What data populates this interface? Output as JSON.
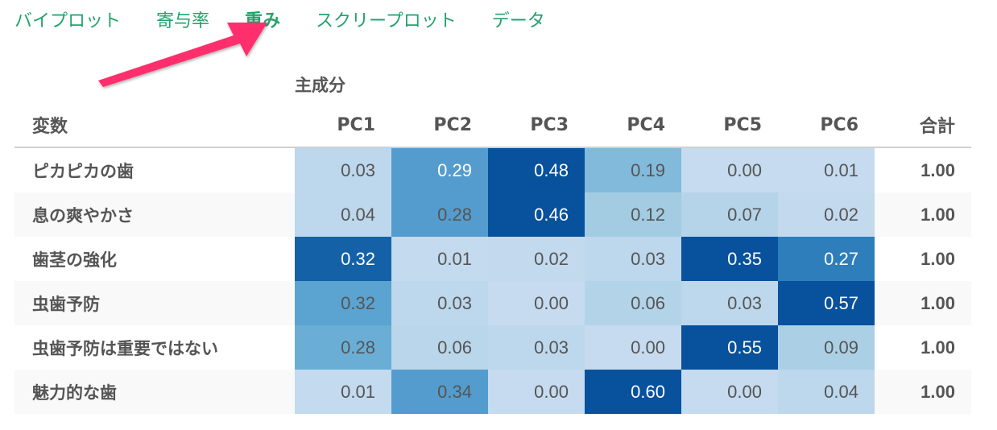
{
  "tabs": [
    {
      "label": "バイプロット",
      "active": false
    },
    {
      "label": "寄与率",
      "active": false
    },
    {
      "label": "重み",
      "active": true
    },
    {
      "label": "スクリープロット",
      "active": false
    },
    {
      "label": "データ",
      "active": false
    }
  ],
  "annotation": {
    "arrow_color": "#ff2e6c",
    "points_to": "重み"
  },
  "table": {
    "group_label": "主成分",
    "headers": {
      "variable": "変数",
      "pcs": [
        "PC1",
        "PC2",
        "PC3",
        "PC4",
        "PC5",
        "PC6"
      ],
      "total": "合計"
    },
    "rows": [
      {
        "variable": "ピカピカの歯",
        "values": [
          "0.03",
          "0.29",
          "0.48",
          "0.19",
          "0.00",
          "0.01"
        ],
        "total": "1.00"
      },
      {
        "variable": "息の爽やかさ",
        "values": [
          "0.04",
          "0.28",
          "0.46",
          "0.12",
          "0.07",
          "0.02"
        ],
        "total": "1.00"
      },
      {
        "variable": "歯茎の強化",
        "values": [
          "0.32",
          "0.01",
          "0.02",
          "0.03",
          "0.35",
          "0.27"
        ],
        "total": "1.00"
      },
      {
        "variable": "虫歯予防",
        "values": [
          "0.32",
          "0.03",
          "0.00",
          "0.06",
          "0.03",
          "0.57"
        ],
        "total": "1.00"
      },
      {
        "variable": "虫歯予防は重要ではない",
        "values": [
          "0.28",
          "0.06",
          "0.03",
          "0.00",
          "0.55",
          "0.09"
        ],
        "total": "1.00"
      },
      {
        "variable": "魅力的な歯",
        "values": [
          "0.01",
          "0.34",
          "0.00",
          "0.60",
          "0.00",
          "0.04"
        ],
        "total": "1.00"
      }
    ],
    "cell_colors": [
      [
        "#bdd7ec",
        "#549ccd",
        "#08519c",
        "#82badb",
        "#c6dbef",
        "#c6dbef"
      ],
      [
        "#bdd7ec",
        "#549ccd",
        "#08519c",
        "#a3cce3",
        "#b5d4e9",
        "#c2d9ee"
      ],
      [
        "#1461a8",
        "#c4daee",
        "#c2d9ee",
        "#bdd7ec",
        "#08519c",
        "#2e7ebc"
      ],
      [
        "#5ba3d0",
        "#bdd7ec",
        "#c6dbef",
        "#b3d3e8",
        "#bdd7ec",
        "#08519c"
      ],
      [
        "#6aaed6",
        "#b9d6ea",
        "#bdd7ec",
        "#c6dbef",
        "#08519c",
        "#abcfe5"
      ],
      [
        "#c4daee",
        "#549ccd",
        "#c6dbef",
        "#08519c",
        "#c6dbef",
        "#bdd7ec"
      ]
    ]
  },
  "colors": {
    "tab_green": "#23a36b",
    "header_text": "#555555",
    "dark_fill": "#08519c"
  }
}
